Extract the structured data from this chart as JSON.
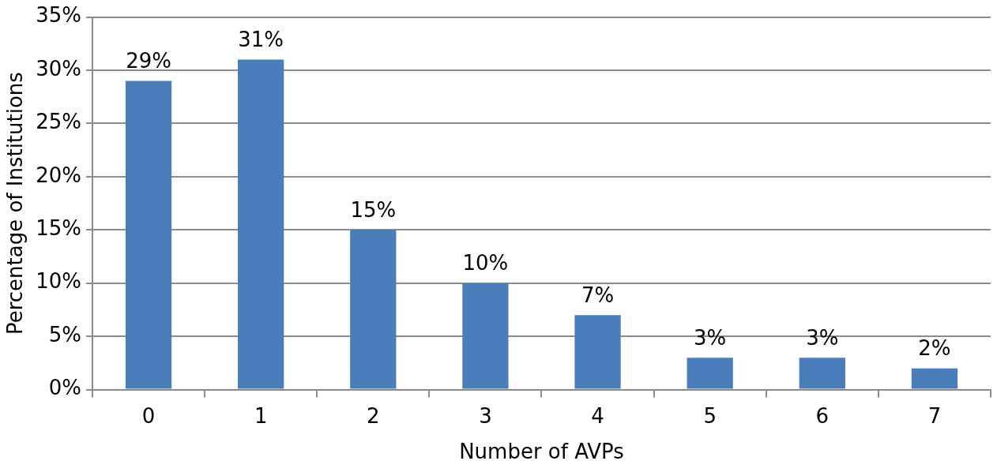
{
  "chart_data": {
    "type": "bar",
    "xlabel": "Number of AVPs",
    "ylabel": "Percentage of Institutions",
    "categories": [
      "0",
      "1",
      "2",
      "3",
      "4",
      "5",
      "6",
      "7"
    ],
    "values": [
      29,
      31,
      15,
      10,
      7,
      3,
      3,
      2
    ],
    "value_labels": [
      "29%",
      "31%",
      "15%",
      "10%",
      "7%",
      "3%",
      "3%",
      "2%"
    ],
    "color": "#4a7ebb",
    "ylim": [
      0,
      35
    ],
    "yticks": [
      {
        "value": 0,
        "label": "0%"
      },
      {
        "value": 5,
        "label": "5%"
      },
      {
        "value": 10,
        "label": "10%"
      },
      {
        "value": 15,
        "label": "15%"
      },
      {
        "value": 20,
        "label": "20%"
      },
      {
        "value": 25,
        "label": "25%"
      },
      {
        "value": 30,
        "label": "30%"
      },
      {
        "value": 35,
        "label": "35%"
      }
    ],
    "grid": "y",
    "legend": false
  }
}
